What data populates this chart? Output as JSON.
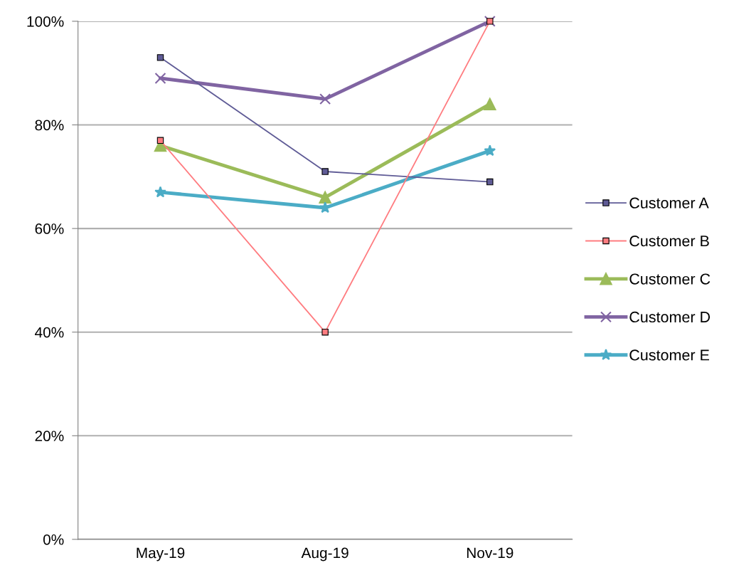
{
  "chart_data": {
    "type": "line",
    "categories": [
      "May-19",
      "Aug-19",
      "Nov-19"
    ],
    "series": [
      {
        "name": "Customer A",
        "color": "#5f5b96",
        "values": [
          93,
          71,
          69
        ],
        "marker": "square"
      },
      {
        "name": "Customer B",
        "color": "#ff7c80",
        "values": [
          77,
          40,
          100
        ],
        "marker": "square"
      },
      {
        "name": "Customer C",
        "color": "#9bbb59",
        "values": [
          76,
          66,
          84
        ],
        "marker": "triangle"
      },
      {
        "name": "Customer D",
        "color": "#8064a2",
        "values": [
          89,
          85,
          100
        ],
        "marker": "cross"
      },
      {
        "name": "Customer E",
        "color": "#4bacc6",
        "values": [
          67,
          64,
          75
        ],
        "marker": "star"
      }
    ],
    "ylim": [
      0,
      100
    ],
    "yticks": [
      {
        "value": 0,
        "label": "0%"
      },
      {
        "value": 20,
        "label": "20%"
      },
      {
        "value": 40,
        "label": "40%"
      },
      {
        "value": 60,
        "label": "60%"
      },
      {
        "value": 80,
        "label": "80%"
      },
      {
        "value": 100,
        "label": "100%"
      }
    ],
    "grid": "y",
    "legend": "right",
    "line_style": "solid"
  }
}
